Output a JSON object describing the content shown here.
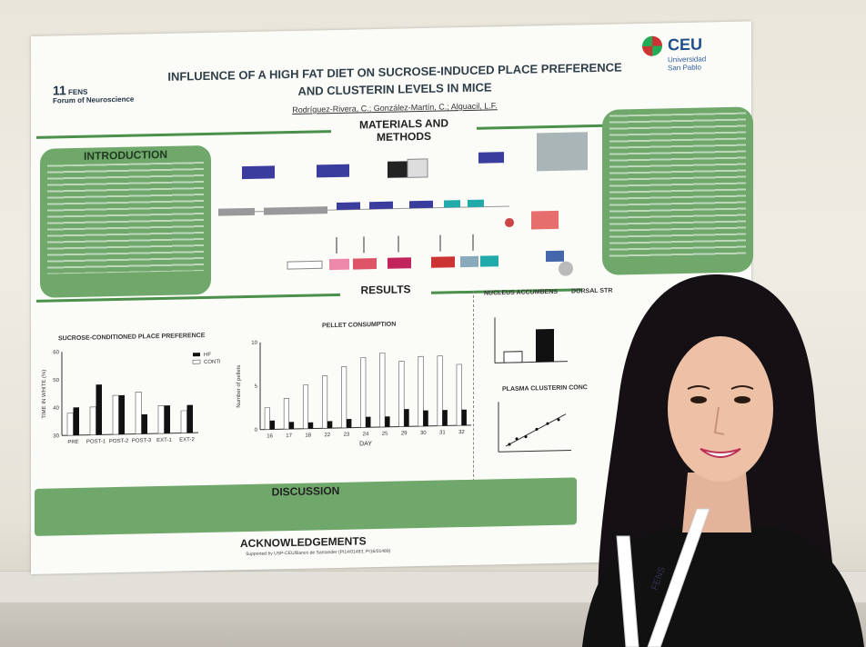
{
  "poster": {
    "title_line1": "INFLUENCE OF A HIGH FAT DIET ON SUCROSE-INDUCED PLACE PREFERENCE",
    "title_line2": "AND CLUSTERIN LEVELS IN MICE",
    "authors": "Rodríguez-Rivera, C.; González-Martín, C.; Alguacil, L.F.",
    "fens_number": "11",
    "fens_name": "FENS",
    "fens_sub": "Forum of Neuroscience",
    "ceu_name": "CEU",
    "ceu_line1": "Universidad",
    "ceu_line2": "San Pablo",
    "materials_heading": "MATERIALS AND METHODS",
    "intro_heading": "INTRODUCTION",
    "results_heading": "RESULTS",
    "discussion_heading": "DISCUSSION",
    "ack_heading": "ACKNOWLEDGEMENTS",
    "ack_text": "Supported by USP-CEU/Banco de Santander (PI14/01483, PI16/01489)",
    "nucleus_label": "NUCLEUS ACCUMBENS",
    "dorsal_label": "DORSAL STR",
    "plasma_label": "PLASMA CLUSTERIN CONC",
    "pellet_title": "PELLET CONSUMPTION",
    "cpp_title": "SUCROSE-CONDITIONED PLACE PREFERENCE",
    "cpp_ylabel": "TIME IN WHITE (%)",
    "pellet_ylabel": "Number of pellets",
    "pellet_xlabel": "DAY",
    "legend_hf": "HF",
    "legend_control": "CONTROL",
    "colors": {
      "green_box": "#6fa86a",
      "green_line": "#4a8f4a",
      "title_blue": "#2f3f4a"
    }
  },
  "badge": {
    "lanyard_text": "FENS"
  },
  "chart_data": [
    {
      "type": "bar",
      "title": "SUCROSE-CONDITIONED PLACE PREFERENCE",
      "ylabel": "TIME IN WHITE (%)",
      "xlabel": "",
      "categories": [
        "PRE",
        "POST-1",
        "POST-2",
        "POST-3",
        "EXT-1",
        "EXT-2"
      ],
      "ylim": [
        30,
        60
      ],
      "yticks": [
        30,
        40,
        50,
        60
      ],
      "series": [
        {
          "name": "CONTROL",
          "values": [
            38,
            40,
            44,
            45,
            40,
            38
          ]
        },
        {
          "name": "HF",
          "values": [
            40,
            48,
            44,
            37,
            40,
            40
          ]
        }
      ]
    },
    {
      "type": "bar",
      "title": "PELLET CONSUMPTION",
      "ylabel": "Number of pellets",
      "xlabel": "DAY",
      "categories": [
        "16",
        "17",
        "18",
        "22",
        "23",
        "24",
        "25",
        "29",
        "30",
        "31",
        "32"
      ],
      "ylim": [
        0,
        10
      ],
      "yticks": [
        0,
        5,
        10
      ],
      "series": [
        {
          "name": "CONTROL",
          "values": [
            2.5,
            3.5,
            5,
            6,
            7,
            8,
            8.5,
            7.5,
            8,
            8,
            7
          ]
        },
        {
          "name": "HF",
          "values": [
            1,
            0.8,
            0.7,
            0.8,
            1,
            1.2,
            1.2,
            2,
            1.8,
            1.8,
            1.8
          ]
        }
      ]
    }
  ]
}
